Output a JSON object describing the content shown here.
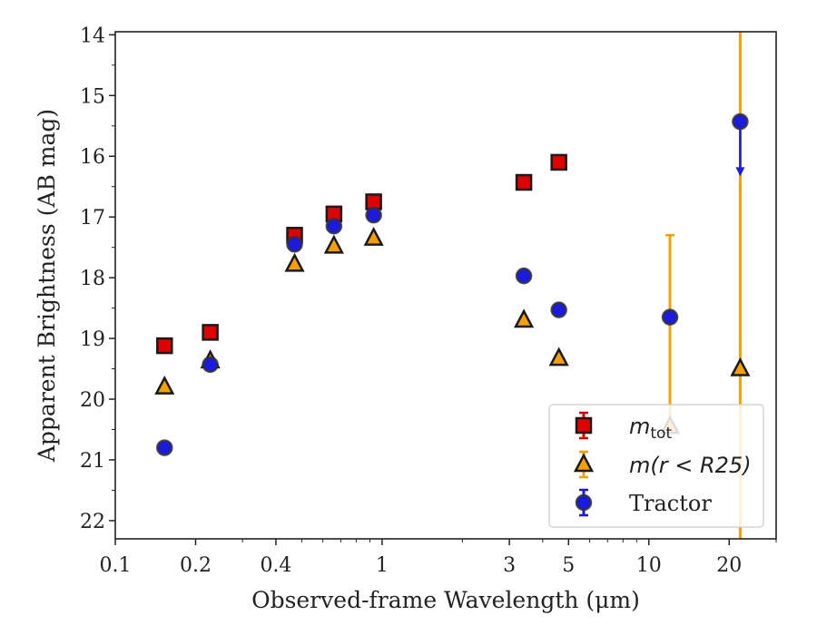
{
  "chart_data": {
    "type": "scatter",
    "title": "",
    "xlabel": "Observed-frame Wavelength (μm)",
    "ylabel": "Apparent Brightness (AB mag)",
    "xscale": "log",
    "xlim": [
      0.1,
      30
    ],
    "ylim": [
      22.3,
      13.95
    ],
    "y_inverted": true,
    "grid": false,
    "legend_position": "lower-right",
    "x_ticks": [
      0.1,
      0.2,
      0.4,
      1,
      3,
      5,
      10,
      20
    ],
    "x_tick_labels": [
      "0.1",
      "0.2",
      "0.4",
      "1",
      "3",
      "5",
      "10",
      "20"
    ],
    "y_ticks": [
      14,
      15,
      16,
      17,
      18,
      19,
      20,
      21,
      22
    ],
    "y_tick_labels": [
      "14",
      "15",
      "16",
      "17",
      "18",
      "19",
      "20",
      "21",
      "22"
    ],
    "legend": [
      {
        "name": "m_tot",
        "base": "m",
        "sub": "tot",
        "marker": "square"
      },
      {
        "name": "m(r < R25)",
        "marker": "triangle"
      },
      {
        "name": "Tractor",
        "marker": "circle"
      }
    ],
    "series": [
      {
        "name": "m_tot",
        "marker": "square",
        "color": "#e00000",
        "edge_color": "#1a1a1a",
        "points": [
          {
            "x": 0.153,
            "y": 19.12
          },
          {
            "x": 0.227,
            "y": 18.9
          },
          {
            "x": 0.47,
            "y": 17.3
          },
          {
            "x": 0.66,
            "y": 16.95
          },
          {
            "x": 0.93,
            "y": 16.75
          },
          {
            "x": 3.4,
            "y": 16.43
          },
          {
            "x": 4.6,
            "y": 16.1
          }
        ]
      },
      {
        "name": "m(r < R25)",
        "marker": "triangle",
        "color": "#f5a000",
        "edge_color": "#1a1a1a",
        "points": [
          {
            "x": 0.153,
            "y": 19.8
          },
          {
            "x": 0.227,
            "y": 19.37
          },
          {
            "x": 0.47,
            "y": 17.78
          },
          {
            "x": 0.66,
            "y": 17.48
          },
          {
            "x": 0.93,
            "y": 17.35
          },
          {
            "x": 3.4,
            "y": 18.7
          },
          {
            "x": 4.6,
            "y": 19.33
          },
          {
            "x": 12.0,
            "y": 20.45,
            "yerr_minus": 3.15,
            "yerr_plus": 0
          },
          {
            "x": 22.0,
            "y": 19.5,
            "yerr_minus": 5.6,
            "yerr_plus": 3
          }
        ]
      },
      {
        "name": "Tractor",
        "marker": "circle",
        "color": "#1a1ae0",
        "edge_color": "#333333",
        "points": [
          {
            "x": 0.153,
            "y": 20.8
          },
          {
            "x": 0.227,
            "y": 19.43
          },
          {
            "x": 0.47,
            "y": 17.45
          },
          {
            "x": 0.66,
            "y": 17.15
          },
          {
            "x": 0.93,
            "y": 16.97
          },
          {
            "x": 3.4,
            "y": 17.97
          },
          {
            "x": 4.6,
            "y": 18.53
          },
          {
            "x": 12.0,
            "y": 18.65
          },
          {
            "x": 22.0,
            "y": 15.43,
            "upper_limit_to": 16.3
          }
        ]
      }
    ]
  }
}
